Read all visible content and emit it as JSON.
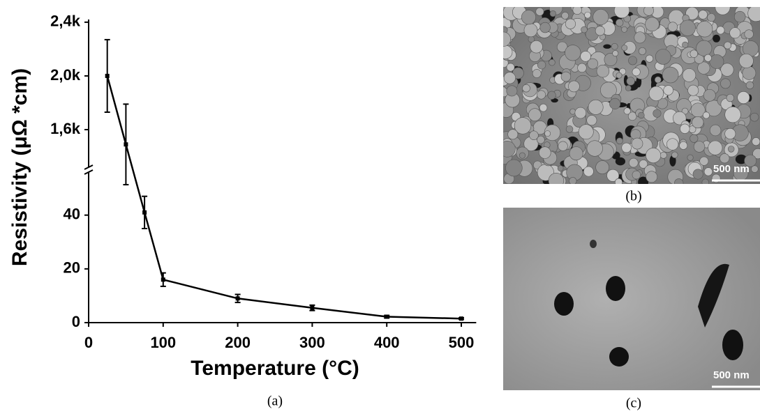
{
  "chart_data": {
    "type": "line",
    "caption": "(a)",
    "xlabel": "Temperature (°C)",
    "ylabel": "Resistivity (μΩ *cm)",
    "x": [
      25,
      50,
      75,
      100,
      200,
      300,
      400,
      500
    ],
    "values": [
      2000,
      1490,
      41,
      16,
      9,
      5.5,
      2.2,
      1.5
    ],
    "errors": [
      270,
      300,
      6,
      2.5,
      1.5,
      1,
      0.5,
      0.3
    ],
    "color": "#000000",
    "xlim": [
      0,
      520
    ],
    "xticks": [
      0,
      100,
      200,
      300,
      400,
      500
    ],
    "y_segments": [
      {
        "ylim": [
          0,
          56
        ],
        "yticks": [
          0,
          20,
          40
        ]
      },
      {
        "ylim": [
          1320,
          2420
        ],
        "yticks": [
          {
            "value": 1600,
            "label": "1,6k"
          },
          {
            "value": 2000,
            "label": "2,0k"
          },
          {
            "value": 2400,
            "label": "2,4k"
          }
        ]
      }
    ]
  },
  "images": [
    {
      "caption": "(b)",
      "scale_bar": "500 nm"
    },
    {
      "caption": "(c)",
      "scale_bar": "500 nm"
    }
  ]
}
